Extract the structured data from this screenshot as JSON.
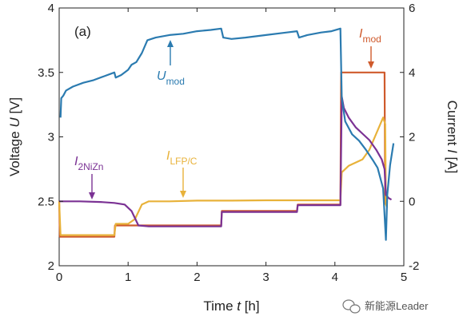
{
  "chart_data": {
    "type": "line",
    "panel_label": "(a)",
    "xlabel_prefix": "Time ",
    "xlabel_var": "t",
    "xlabel_suffix": " [h]",
    "ylabel_left_prefix": "Voltage ",
    "ylabel_left_var": "U",
    "ylabel_left_suffix": " [V]",
    "ylabel_right_prefix": "Current ",
    "ylabel_right_var": "I",
    "ylabel_right_suffix": " [A]",
    "xlim": [
      0,
      5
    ],
    "ylim_left": [
      2,
      4
    ],
    "ylim_right": [
      -2,
      6
    ],
    "xticks": [
      "0",
      "1",
      "2",
      "3",
      "4",
      "5"
    ],
    "yticks_left": [
      "2",
      "2.5",
      "3",
      "3.5",
      "4"
    ],
    "yticks_right": [
      "-2",
      "0",
      "2",
      "4",
      "6"
    ],
    "grid": false,
    "colors": {
      "U_mod": "#2b7bb0",
      "I_mod": "#cf5a2c",
      "I_LFP": "#e8b23a",
      "I_2NiZn": "#7b3294"
    },
    "annotations": [
      {
        "series": "U_mod",
        "main": "U",
        "sub": "mod"
      },
      {
        "series": "I_mod",
        "main": "I",
        "sub": "mod"
      },
      {
        "series": "I_LFP",
        "main": "I",
        "sub": "LFP/C"
      },
      {
        "series": "I_2NiZn",
        "main": "I",
        "sub": "2NiZn"
      }
    ],
    "series": [
      {
        "key": "U_mod",
        "axis": "left",
        "points": [
          [
            0.02,
            3.15
          ],
          [
            0.03,
            3.3
          ],
          [
            0.06,
            3.32
          ],
          [
            0.1,
            3.36
          ],
          [
            0.2,
            3.39
          ],
          [
            0.35,
            3.42
          ],
          [
            0.5,
            3.44
          ],
          [
            0.65,
            3.47
          ],
          [
            0.8,
            3.5
          ],
          [
            0.82,
            3.46
          ],
          [
            0.9,
            3.48
          ],
          [
            1.0,
            3.52
          ],
          [
            1.05,
            3.56
          ],
          [
            1.12,
            3.58
          ],
          [
            1.2,
            3.65
          ],
          [
            1.28,
            3.75
          ],
          [
            1.4,
            3.77
          ],
          [
            1.6,
            3.79
          ],
          [
            1.8,
            3.8
          ],
          [
            2.0,
            3.82
          ],
          [
            2.2,
            3.83
          ],
          [
            2.35,
            3.84
          ],
          [
            2.38,
            3.77
          ],
          [
            2.5,
            3.76
          ],
          [
            2.7,
            3.77
          ],
          [
            3.0,
            3.79
          ],
          [
            3.3,
            3.81
          ],
          [
            3.45,
            3.82
          ],
          [
            3.48,
            3.77
          ],
          [
            3.6,
            3.79
          ],
          [
            3.8,
            3.81
          ],
          [
            3.95,
            3.82
          ],
          [
            4.08,
            3.84
          ],
          [
            4.1,
            3.3
          ],
          [
            4.15,
            3.12
          ],
          [
            4.25,
            3.02
          ],
          [
            4.35,
            2.97
          ],
          [
            4.45,
            2.9
          ],
          [
            4.55,
            2.82
          ],
          [
            4.62,
            2.76
          ],
          [
            4.7,
            2.6
          ],
          [
            4.74,
            2.2
          ],
          [
            4.76,
            2.55
          ],
          [
            4.8,
            2.78
          ],
          [
            4.85,
            2.95
          ]
        ]
      },
      {
        "key": "I_mod",
        "axis": "right",
        "points": [
          [
            0.0,
            0.0
          ],
          [
            0.01,
            -1.1
          ],
          [
            0.4,
            -1.1
          ],
          [
            0.8,
            -1.1
          ],
          [
            0.81,
            -0.75
          ],
          [
            1.2,
            -0.75
          ],
          [
            1.21,
            -0.75
          ],
          [
            2.35,
            -0.75
          ],
          [
            2.36,
            -0.3
          ],
          [
            3.45,
            -0.3
          ],
          [
            3.46,
            -0.1
          ],
          [
            4.08,
            -0.1
          ],
          [
            4.09,
            4.0
          ],
          [
            4.5,
            4.0
          ],
          [
            4.72,
            4.0
          ],
          [
            4.73,
            -0.1
          ]
        ]
      },
      {
        "key": "I_LFP",
        "axis": "right",
        "points": [
          [
            0.0,
            0.0
          ],
          [
            0.02,
            -1.05
          ],
          [
            0.4,
            -1.05
          ],
          [
            0.8,
            -1.05
          ],
          [
            0.82,
            -0.7
          ],
          [
            1.0,
            -0.7
          ],
          [
            1.1,
            -0.55
          ],
          [
            1.2,
            -0.1
          ],
          [
            1.3,
            0.0
          ],
          [
            1.6,
            0.0
          ],
          [
            2.0,
            0.02
          ],
          [
            2.5,
            0.02
          ],
          [
            3.0,
            0.03
          ],
          [
            3.5,
            0.03
          ],
          [
            4.08,
            0.03
          ],
          [
            4.1,
            0.9
          ],
          [
            4.2,
            1.1
          ],
          [
            4.3,
            1.2
          ],
          [
            4.4,
            1.3
          ],
          [
            4.5,
            1.6
          ],
          [
            4.6,
            2.1
          ],
          [
            4.7,
            2.6
          ],
          [
            4.73,
            2.4
          ],
          [
            4.74,
            -0.1
          ],
          [
            4.76,
            -0.2
          ]
        ]
      },
      {
        "key": "I_2NiZn",
        "axis": "right",
        "points": [
          [
            0.0,
            0.0
          ],
          [
            0.3,
            0.0
          ],
          [
            0.6,
            -0.02
          ],
          [
            0.8,
            -0.05
          ],
          [
            0.95,
            -0.1
          ],
          [
            1.05,
            -0.3
          ],
          [
            1.15,
            -0.75
          ],
          [
            1.3,
            -0.78
          ],
          [
            2.35,
            -0.78
          ],
          [
            2.36,
            -0.33
          ],
          [
            3.45,
            -0.33
          ],
          [
            3.46,
            -0.12
          ],
          [
            4.08,
            -0.12
          ],
          [
            4.1,
            3.25
          ],
          [
            4.13,
            2.9
          ],
          [
            4.2,
            2.6
          ],
          [
            4.3,
            2.3
          ],
          [
            4.4,
            2.1
          ],
          [
            4.5,
            1.9
          ],
          [
            4.6,
            1.6
          ],
          [
            4.68,
            1.3
          ],
          [
            4.72,
            1.0
          ],
          [
            4.74,
            0.2
          ],
          [
            4.78,
            0.1
          ],
          [
            4.82,
            0.05
          ]
        ]
      }
    ]
  },
  "watermark": {
    "icon": "wechat-icon",
    "text": "新能源Leader"
  }
}
